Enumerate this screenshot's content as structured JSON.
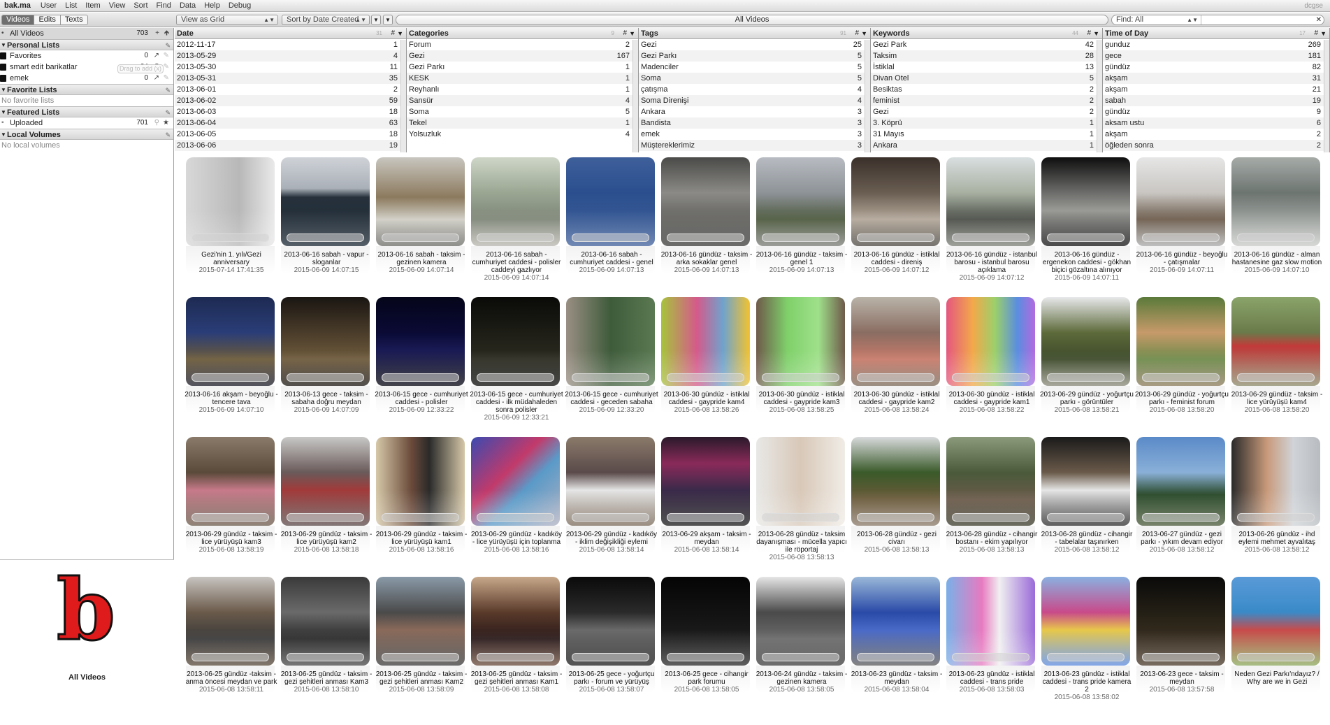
{
  "menubar": {
    "app": "bak.ma",
    "items": [
      "User",
      "List",
      "Item",
      "View",
      "Sort",
      "Find",
      "Data",
      "Help",
      "Debug"
    ],
    "right": "dcgse"
  },
  "toolbar": {
    "tabs": [
      {
        "label": "Videos",
        "selected": true
      },
      {
        "label": "Edits",
        "selected": false
      },
      {
        "label": "Texts",
        "selected": false
      }
    ],
    "view_select": "View as Grid",
    "sort_select": "Sort by Date Created",
    "list_title": "All Videos",
    "find_select": "Find: All",
    "find_value": ""
  },
  "sidebar": {
    "all_videos": {
      "label": "All Videos",
      "count": "703"
    },
    "drag_hint": "Drag to add (x)",
    "personal_lists": {
      "title": "Personal Lists",
      "items": [
        {
          "label": "Favorites",
          "count": "0"
        },
        {
          "label": "smart edit barikatlar",
          "count": "24"
        },
        {
          "label": "emek",
          "count": "0"
        }
      ]
    },
    "favorite_lists": {
      "title": "Favorite Lists",
      "empty": "No favorite lists"
    },
    "featured_lists": {
      "title": "Featured Lists",
      "items": [
        {
          "label": "Uploaded",
          "count": "701"
        }
      ]
    },
    "local_volumes": {
      "title": "Local Volumes",
      "empty": "No local volumes"
    },
    "info_title": "All Videos",
    "logo_letter": "b"
  },
  "browser": [
    {
      "title": "Date",
      "count": "31",
      "rows": [
        [
          "2012-11-17",
          "1"
        ],
        [
          "2013-05-29",
          "4"
        ],
        [
          "2013-05-30",
          "11"
        ],
        [
          "2013-05-31",
          "35"
        ],
        [
          "2013-06-01",
          "2"
        ],
        [
          "2013-06-02",
          "59"
        ],
        [
          "2013-06-03",
          "18"
        ],
        [
          "2013-06-04",
          "63"
        ],
        [
          "2013-06-05",
          "18"
        ],
        [
          "2013-06-06",
          "19"
        ]
      ]
    },
    {
      "title": "Categories",
      "count": "9",
      "rows": [
        [
          "Forum",
          "2"
        ],
        [
          "Gezi",
          "167"
        ],
        [
          "Gezi Parkı",
          "1"
        ],
        [
          "KESK",
          "1"
        ],
        [
          "Reyhanlı",
          "1"
        ],
        [
          "Sansür",
          "4"
        ],
        [
          "Soma",
          "5"
        ],
        [
          "Tekel",
          "1"
        ],
        [
          "Yolsuzluk",
          "4"
        ]
      ]
    },
    {
      "title": "Tags",
      "count": "91",
      "rows": [
        [
          "Gezi",
          "25"
        ],
        [
          "Gezi Parkı",
          "5"
        ],
        [
          "Madenciler",
          "5"
        ],
        [
          "Soma",
          "5"
        ],
        [
          "çatışma",
          "4"
        ],
        [
          "Soma Direnişi",
          "4"
        ],
        [
          "Ankara",
          "3"
        ],
        [
          "Bandista",
          "3"
        ],
        [
          "emek",
          "3"
        ],
        [
          "Müştereklerimiz",
          "3"
        ]
      ]
    },
    {
      "title": "Keywords",
      "count": "44",
      "rows": [
        [
          "Gezi Park",
          "42"
        ],
        [
          "Taksim",
          "28"
        ],
        [
          "İstiklal",
          "13"
        ],
        [
          "Divan Otel",
          "5"
        ],
        [
          "Besiktas",
          "2"
        ],
        [
          "feminist",
          "2"
        ],
        [
          "Gezi",
          "2"
        ],
        [
          "3. Köprü",
          "1"
        ],
        [
          "31 Mayıs",
          "1"
        ],
        [
          "Ankara",
          "1"
        ]
      ]
    },
    {
      "title": "Time of Day",
      "count": "17",
      "rows": [
        [
          "gunduz",
          "269"
        ],
        [
          "gece",
          "181"
        ],
        [
          "gündüz",
          "82"
        ],
        [
          "akşam",
          "31"
        ],
        [
          "akşam",
          "21"
        ],
        [
          "sabah",
          "19"
        ],
        [
          "gündüz",
          "9"
        ],
        [
          "aksam ustu",
          "6"
        ],
        [
          "akşam",
          "2"
        ],
        [
          "öğleden sonra",
          "2"
        ]
      ]
    }
  ],
  "colors": {
    "accent": "#6f6f6f",
    "logo_red": "#e01b1b"
  },
  "videos": [
    {
      "title": "Gezi'nin 1. yılı/Gezi anniversary",
      "date": "2015-07-14 17:41:35",
      "bg": "linear-gradient(90deg,#d8d8d8,#b8b8b8 60%,#e9e9e9)"
    },
    {
      "title": "2013-06-16 sabah - vapur - sloganlar",
      "date": "2015-06-09 14:07:15",
      "bg": "linear-gradient(#cfd3d8 0%,#aab0b8 35%,#26313c 45%,#1d2a35 100%)"
    },
    {
      "title": "2013-06-16 sabah - taksim - gezinen kamera",
      "date": "2015-06-09 14:07:14",
      "bg": "linear-gradient(#c8c6bf,#8c7a5e 45%,#d0cec5 70%,#6a6a66)"
    },
    {
      "title": "2013-06-16 sabah - cumhuriyet caddesi - polisler caddeyi gazlıyor",
      "date": "2015-06-09 14:07:14",
      "bg": "linear-gradient(#cfd6c8,#9aa692 40%,#7f8779 70%,#b8b6ae)"
    },
    {
      "title": "2013-06-16 sabah - cumhuriyet caddesi - genel",
      "date": "2015-06-09 14:07:13",
      "bg": "linear-gradient(#3e5f9a,#2b4f8e 40%,#41619a)"
    },
    {
      "title": "2013-06-16 gündüz - taksim - arka sokaklar genel",
      "date": "2015-06-09 14:07:13",
      "bg": "linear-gradient(#4a4a48,#8b8a86 40%,#3a3a38)"
    },
    {
      "title": "2013-06-16 gündüz - taksim - genel 1",
      "date": "2015-06-09 14:07:13",
      "bg": "linear-gradient(#b8bcc2,#8e9398 40%,#4e5a3f 70%,#7a7d76)"
    },
    {
      "title": "2013-06-16 gündüz - istiklal caddesi - direniş",
      "date": "2015-06-09 14:07:12",
      "bg": "linear-gradient(#3a302a,#6a5e52 40%,#b3a89a 70%,#4a4640)"
    },
    {
      "title": "2013-06-16 gündüz - istanbul barosu - istanbul barosu açıklama",
      "date": "2015-06-09 14:07:12",
      "bg": "linear-gradient(#d9dfe0,#a8b0a2 40%,#4b4f48 70%,#7d8078)"
    },
    {
      "title": "2013-06-16 gündüz - ergenekon caddesi - gökhan biçici gözaltına alınıyor",
      "date": "2015-06-09 14:07:11",
      "bg": "linear-gradient(#0e0e0e,#6d6d6b 40%,#9a9a96 60%,#111)"
    },
    {
      "title": "2013-06-16 gündüz - beyoğlu - çatışmalar",
      "date": "2015-06-09 14:07:11",
      "bg": "linear-gradient(#e6e6e6,#c9c6c2 40%,#6c5c4c 70%,#aaa)"
    },
    {
      "title": "2013-06-16 gündüz - alman hastanesine gaz slow motion",
      "date": "2015-06-09 14:07:10",
      "bg": "linear-gradient(#a6aba8,#6d7571 40%,#c9cbc8)"
    },
    {
      "title": "2013-06-16 akşam - beyoğlu - tencere tava",
      "date": "2015-06-09 14:07:10",
      "bg": "linear-gradient(#1d2a52,#2a3d77 40%,#6b5a3a 70%,#1b1b2a)"
    },
    {
      "title": "2013-06-13 gece - taksim - sabaha doğru meydan",
      "date": "2015-06-09 14:07:09",
      "bg": "linear-gradient(#1a1612,#4a3c2a 40%,#6e5a3c 70%,#1a1612)"
    },
    {
      "title": "2013-06-15 gece - cumhuriyet caddesi - polisler",
      "date": "2015-06-09 12:33:22",
      "bg": "linear-gradient(#05051a,#0a0a35 40%,#1a1a55 60%,#050510)"
    },
    {
      "title": "2013-06-15 gece - cumhuriyet caddesi - ilk müdahaleden sonra polisler",
      "date": "2015-06-09 12:33:21",
      "bg": "linear-gradient(#0a0a08,#1d1d16 40%,#2a2a20 70%,#0a0a08)"
    },
    {
      "title": "2013-06-15 gece - cumhuriyet caddesi - geceden sabaha",
      "date": "2015-06-09 12:33:20",
      "bg": "linear-gradient(90deg,#9a8f84,#3e5b3a 50%,#5a7a52)"
    },
    {
      "title": "2013-06-30 gündüz - istiklal caddesi - gaypride kam4",
      "date": "2015-06-08 13:58:26",
      "bg": "linear-gradient(90deg,#a7c43c,#d45a8a 40%,#6fa3cc 70%,#f2c230)"
    },
    {
      "title": "2013-06-30 gündüz - istiklal caddesi - gaypride kam3",
      "date": "2015-06-08 13:58:25",
      "bg": "linear-gradient(90deg,#6e5a4a,#7fd06a 35%,#9fe08a 70%,#6e5a4a)"
    },
    {
      "title": "2013-06-30 gündüz - istiklal caddesi - gaypride kam2",
      "date": "2015-06-08 13:58:24",
      "bg": "linear-gradient(#b9b3a8,#8a6d62 40%,#c77a6a 70%,#7a6a5a)"
    },
    {
      "title": "2013-06-30 gündüz - istiklal caddesi - gaypride kam1",
      "date": "2015-06-08 13:58:22",
      "bg": "linear-gradient(90deg,#e4577f,#f2a94a 30%,#9bd06b 55%,#5a8ee0 80%,#b26ae0)"
    },
    {
      "title": "2013-06-29 gündüz - yoğurtçu parkı - görüntüler",
      "date": "2015-06-08 13:58:21",
      "bg": "linear-gradient(#e7e8ea,#5d6a3a 40%,#3d4a2a 70%,#8a8a7a)"
    },
    {
      "title": "2013-06-29 gündüz - yoğurtçu parkı - feminist forum",
      "date": "2015-06-08 13:58:20",
      "bg": "linear-gradient(#5a7a3a,#c79a6a 40%,#6e8a4a 70%,#8a7a5a)"
    },
    {
      "title": "2013-06-29 gündüz - taksim - lice yürüyüşü kam4",
      "date": "2015-06-08 13:58:20",
      "bg": "linear-gradient(#8aa46a,#6a7a4a 40%,#c23a3a 55%,#8a8a6a)"
    },
    {
      "title": "2013-06-29 gündüz - taksim - lice yürüyüşü kam3",
      "date": "2015-06-08 13:58:19",
      "bg": "linear-gradient(#8a7a6a,#5a4a3a 40%,#c77a8a 60%,#6a5a4a)"
    },
    {
      "title": "2013-06-29 gündüz - taksim - lice yürüyüşü kam2",
      "date": "2015-06-08 13:58:18",
      "bg": "linear-gradient(#c8c8c6,#6a5a5a 40%,#a23a3a 60%,#5a4a4a)"
    },
    {
      "title": "2013-06-29 gündüz - taksim - lice yürüyüşü kam1",
      "date": "2015-06-08 13:58:16",
      "bg": "linear-gradient(90deg,#d6c8a8,#6a4a3a 40%,#2a2a2a 60%,#d6c8a8)"
    },
    {
      "title": "2013-06-29 gündüz - kadıköy - lice yürüyüşü için toplanma",
      "date": "2015-06-08 13:58:16",
      "bg": "linear-gradient(135deg,#3a4ab0,#c23a6a 40%,#5a9ac8 60%,#b0b0c0)"
    },
    {
      "title": "2013-06-29 gündüz - kadıköy - iklim değişikliği eylemi",
      "date": "2015-06-08 13:58:14",
      "bg": "linear-gradient(#8a7a6a,#5a4a4a 40%,#e6e6e6 60%,#7a6a5a)"
    },
    {
      "title": "2013-06-29 akşam - taksim - meydan",
      "date": "2015-06-08 13:58:14",
      "bg": "linear-gradient(#2a1a2a,#8a2a5a 30%,#3a2a4a 60%,#1a1a1a)"
    },
    {
      "title": "2013-06-28 gündüz - taksim dayanışması - mücella yapıcı ile röportaj",
      "date": "2015-06-08 13:58:13",
      "bg": "linear-gradient(90deg,#e8e8e6,#d8c8b8 50%,#f0ece6)"
    },
    {
      "title": "2013-06-28 gündüz - gezi civarı",
      "date": "2015-06-08 13:58:13",
      "bg": "linear-gradient(#d8dadc,#3a5a2a 40%,#6a5a3a 70%,#8a7a6a)"
    },
    {
      "title": "2013-06-28 gündüz - cihangir bostanı - ekim yapılıyor",
      "date": "2015-06-08 13:58:13",
      "bg": "linear-gradient(#8a9a7a,#4a5a3a 40%,#6a5a4a 70%,#3a3a2a)"
    },
    {
      "title": "2013-06-28 gündüz - cihangir - tabelalar taşınırken",
      "date": "2015-06-08 13:58:12",
      "bg": "linear-gradient(#1a1a1a,#6a5a4a 40%,#e6e6e6 60%,#2a2a2a)"
    },
    {
      "title": "2013-06-27 gündüz - gezi parkı - yıkım devam ediyor",
      "date": "2015-06-08 13:58:12",
      "bg": "linear-gradient(#5a8ac8,#8ab0d8 40%,#2a4a2a 65%,#4a5a3a)"
    },
    {
      "title": "2013-06-26 gündüz - ihd eylemi mehmet ayvalıtaş",
      "date": "2015-06-08 13:58:12",
      "bg": "linear-gradient(90deg,#2a2a2a,#c89a7a 40%,#d0d4d8 70%,#b8bcc0)"
    },
    {
      "title": "2013-06-25 gündüz -taksim - anma öncesi meydan ve park",
      "date": "2015-06-08 13:58:11",
      "bg": "linear-gradient(#c8c4c0,#6a5a4a 40%,#3a3a3a 70%,#5a4a3a)"
    },
    {
      "title": "2013-06-25 gündüz - taksim - gezi şehitleri anması Kam3",
      "date": "2015-06-08 13:58:10",
      "bg": "linear-gradient(#3a3a3a,#6a6a6a 40%,#2a2a2a 70%,#4a4a4a)"
    },
    {
      "title": "2013-06-25 gündüz - taksim - gezi şehitleri anması Kam2",
      "date": "2015-06-08 13:58:09",
      "bg": "linear-gradient(#8a9aa8,#4a4a4a 40%,#8a6a5a 60%,#3a3a3a)"
    },
    {
      "title": "2013-06-25 gündüz - taksim - gezi şehitleri anması Kam1",
      "date": "2015-06-08 13:58:08",
      "bg": "linear-gradient(#c8a88a,#5a3a2a 40%,#2a1a1a 70%,#6a4a3a)"
    },
    {
      "title": "2013-06-25 gece - yoğurtçu parkı - forum ve yürüyüş",
      "date": "2015-06-08 13:58:07",
      "bg": "linear-gradient(#0a0a0a,#2a2a2a 40%,#6a6a6a 60%,#1a1a1a)"
    },
    {
      "title": "2013-06-25 gece - cihangir park forumu",
      "date": "2015-06-08 13:58:05",
      "bg": "linear-gradient(#050505,#151515 50%,#2a2a2a)"
    },
    {
      "title": "2013-06-24 gündüz - taksim - gezinen kamera",
      "date": "2015-06-08 13:58:05",
      "bg": "linear-gradient(#e6e6e6,#4a4a4a 40%,#6a6a6a 70%,#3a3a3a)"
    },
    {
      "title": "2013-06-23 gündüz - taksim - meydan",
      "date": "2015-06-08 13:58:04",
      "bg": "linear-gradient(#9ab8d8,#2a4aa8 40%,#4a6ac8 60%,#5a5a5a)"
    },
    {
      "title": "2013-06-23 gündüz - istiklal caddesi - trans pride",
      "date": "2015-06-08 13:58:03",
      "bg": "linear-gradient(90deg,#7ab0e8,#e87ac0 40%,#f0f0f0 60%,#9a6ad8)"
    },
    {
      "title": "2013-06-23 gündüz - istiklal caddesi - trans pride kamera 2",
      "date": "2015-06-08 13:58:02",
      "bg": "linear-gradient(#8ab0e0,#c84a8a 40%,#e8c84a 60%,#5a8ae0)"
    },
    {
      "title": "2013-06-23 gece - taksim - meydan",
      "date": "2015-06-08 13:57:58",
      "bg": "linear-gradient(#0a0a0a,#2a2418 50%,#4a3a2a)"
    },
    {
      "title": "Neden Gezi Parkı'ndayız? / Why are we in Gezi",
      "date": "",
      "bg": "linear-gradient(#5a9ad8,#3a8ac8 40%,#c84a4a 60%,#8aa85a)"
    }
  ]
}
